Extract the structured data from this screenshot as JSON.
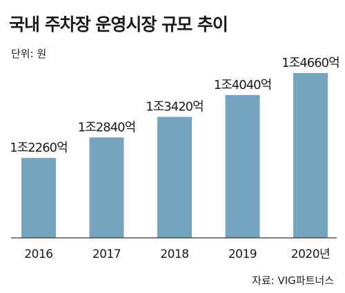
{
  "header": {
    "title": "국내 주차장 운영시장 규모 추이",
    "unit_label": "단위: 원"
  },
  "footer": {
    "source": "자료: VIG파트너스"
  },
  "colors": {
    "bar": "#76a3c0",
    "baseline": "#333333",
    "text": "#1a1a1a"
  },
  "chart_data": {
    "type": "bar",
    "title": "국내 주차장 운영시장 규모 추이",
    "unit": "단위: 원",
    "categories": [
      "2016",
      "2017",
      "2018",
      "2019",
      "2020년"
    ],
    "values": [
      12260,
      12840,
      13420,
      14040,
      14660
    ],
    "value_labels": [
      "1조2260억",
      "1조2840억",
      "1조3420억",
      "1조4040억",
      "1조4660억"
    ],
    "value_unit": "억 원",
    "ylim": [
      10000,
      14660
    ],
    "grid": false,
    "legend": "none"
  }
}
